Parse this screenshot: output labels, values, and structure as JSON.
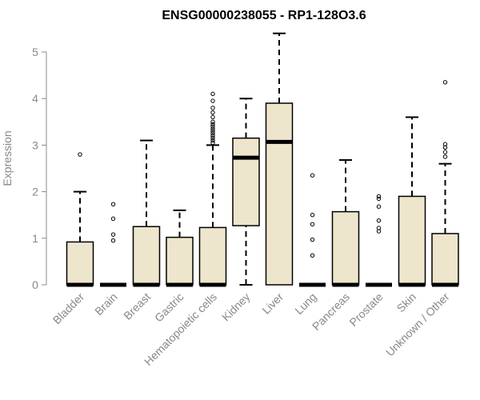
{
  "chart_data": {
    "type": "box",
    "title": "ENSG00000238055 - RP1-128O3.6",
    "xlabel": "",
    "ylabel": "Expression",
    "ylim": [
      0,
      5.5
    ],
    "yticks": [
      "0",
      "1",
      "2",
      "3",
      "4",
      "5"
    ],
    "grid": false,
    "box_color": "#ede6cc",
    "categories": [
      "Bladder",
      "Brain",
      "Breast",
      "Gastric",
      "Hematopoietic cells",
      "Kidney",
      "Liver",
      "Lung",
      "Pancreas",
      "Prostate",
      "Skin",
      "Unknown / Other"
    ],
    "boxes": [
      {
        "min": 0,
        "q1": 0,
        "median": 0,
        "q3": 0.92,
        "max": 2.0,
        "outliers": [
          2.8
        ]
      },
      {
        "min": 0,
        "q1": 0,
        "median": 0,
        "q3": 0,
        "max": 0,
        "outliers": [
          0.95,
          1.08,
          1.42,
          1.73
        ]
      },
      {
        "min": 0,
        "q1": 0,
        "median": 0,
        "q3": 1.25,
        "max": 3.1,
        "outliers": []
      },
      {
        "min": 0,
        "q1": 0,
        "median": 0,
        "q3": 1.02,
        "max": 1.6,
        "outliers": []
      },
      {
        "min": 0,
        "q1": 0,
        "median": 0,
        "q3": 1.23,
        "max": 3.0,
        "outliers": [
          3.05,
          3.1,
          3.15,
          3.2,
          3.25,
          3.3,
          3.35,
          3.4,
          3.45,
          3.5,
          3.6,
          3.7,
          3.8,
          3.95,
          4.1
        ]
      },
      {
        "min": 0,
        "q1": 1.27,
        "median": 2.73,
        "q3": 3.15,
        "max": 4.0,
        "outliers": []
      },
      {
        "min": 0,
        "q1": 0,
        "median": 3.07,
        "q3": 3.9,
        "max": 5.4,
        "outliers": []
      },
      {
        "min": 0,
        "q1": 0,
        "median": 0,
        "q3": 0,
        "max": 0,
        "outliers": [
          0.63,
          0.97,
          1.3,
          1.5,
          2.35
        ]
      },
      {
        "min": 0,
        "q1": 0,
        "median": 0,
        "q3": 1.57,
        "max": 2.68,
        "outliers": []
      },
      {
        "min": 0,
        "q1": 0,
        "median": 0,
        "q3": 0,
        "max": 0,
        "outliers": [
          1.15,
          1.22,
          1.38,
          1.68,
          1.85,
          1.9
        ]
      },
      {
        "min": 0,
        "q1": 0,
        "median": 0,
        "q3": 1.9,
        "max": 3.6,
        "outliers": []
      },
      {
        "min": 0,
        "q1": 0,
        "median": 0,
        "q3": 1.1,
        "max": 2.6,
        "outliers": [
          2.75,
          2.85,
          2.95,
          3.02,
          4.35
        ]
      }
    ]
  }
}
